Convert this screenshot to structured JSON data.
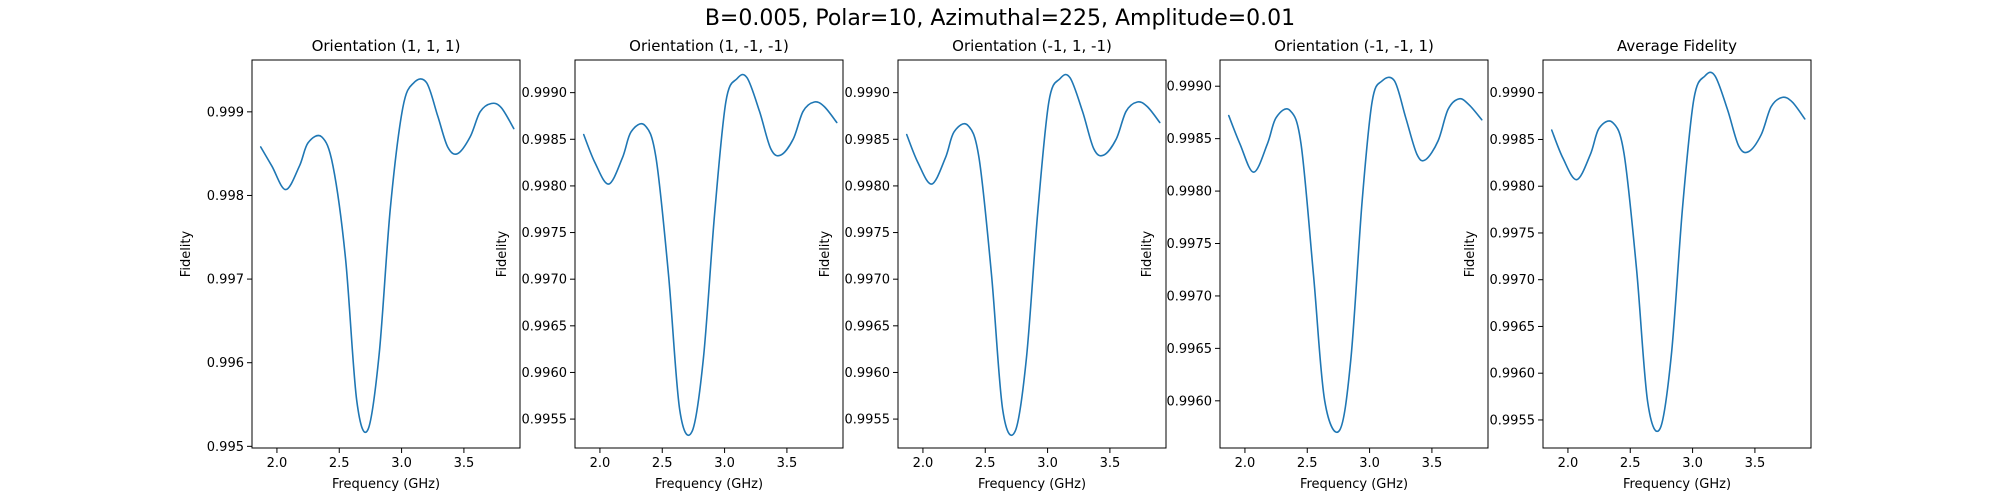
{
  "figure": {
    "title": "B=0.005, Polar=10, Azimuthal=225, Amplitude=0.01"
  },
  "chart_data": [
    {
      "type": "line",
      "title": "Orientation (1, 1, 1)",
      "xlabel": "Frequency (GHz)",
      "ylabel": "Fidelity",
      "xlim": [
        1.8,
        3.95
      ],
      "ylim": [
        0.99498,
        0.99962
      ],
      "xticks": [
        2.0,
        2.5,
        3.0,
        3.5
      ],
      "xtick_labels": [
        "2.0",
        "2.5",
        "3.0",
        "3.5"
      ],
      "yticks": [
        0.995,
        0.996,
        0.997,
        0.998,
        0.999
      ],
      "ytick_labels": [
        "0.995",
        "0.996",
        "0.997",
        "0.998",
        "0.999"
      ],
      "color": "#1f77b4",
      "grid": false,
      "series": [
        {
          "x": [
            1.87,
            1.96,
            2.07,
            2.18,
            2.25,
            2.36,
            2.45,
            2.55,
            2.64,
            2.73,
            2.82,
            2.91,
            3.01,
            3.1,
            3.2,
            3.29,
            3.37,
            3.45,
            3.55,
            3.63,
            3.72,
            3.8,
            3.9
          ],
          "y": [
            0.99858,
            0.99835,
            0.99807,
            0.99835,
            0.99863,
            0.9987,
            0.99835,
            0.99725,
            0.99555,
            0.9952,
            0.9961,
            0.99785,
            0.99905,
            0.99935,
            0.99935,
            0.99895,
            0.99858,
            0.9985,
            0.9987,
            0.999,
            0.9991,
            0.99905,
            0.9988
          ]
        }
      ]
    },
    {
      "type": "line",
      "title": "Orientation (1, -1, -1)",
      "xlabel": "Frequency (GHz)",
      "ylabel": "Fidelity",
      "xlim": [
        1.8,
        3.95
      ],
      "ylim": [
        0.99519,
        0.99935
      ],
      "xticks": [
        2.0,
        2.5,
        3.0,
        3.5
      ],
      "xtick_labels": [
        "2.0",
        "2.5",
        "3.0",
        "3.5"
      ],
      "yticks": [
        0.9955,
        0.996,
        0.9965,
        0.997,
        0.9975,
        0.998,
        0.9985,
        0.999
      ],
      "ytick_labels": [
        "0.9955",
        "0.9960",
        "0.9965",
        "0.9970",
        "0.9975",
        "0.9980",
        "0.9985",
        "0.9990"
      ],
      "color": "#1f77b4",
      "grid": false,
      "series": [
        {
          "x": [
            1.87,
            1.96,
            2.07,
            2.18,
            2.25,
            2.36,
            2.45,
            2.55,
            2.64,
            2.74,
            2.83,
            2.92,
            3.01,
            3.1,
            3.18,
            3.28,
            3.37,
            3.45,
            3.55,
            3.63,
            3.72,
            3.8,
            3.9
          ],
          "y": [
            0.99855,
            0.99825,
            0.99802,
            0.9983,
            0.99858,
            0.99865,
            0.9983,
            0.99705,
            0.9956,
            0.99537,
            0.99615,
            0.9977,
            0.9989,
            0.99915,
            0.99916,
            0.9988,
            0.9984,
            0.99833,
            0.9985,
            0.9988,
            0.9989,
            0.99885,
            0.99868
          ]
        }
      ]
    },
    {
      "type": "line",
      "title": "Orientation (-1, 1, -1)",
      "xlabel": "Frequency (GHz)",
      "ylabel": "Fidelity",
      "xlim": [
        1.8,
        3.95
      ],
      "ylim": [
        0.99519,
        0.99935
      ],
      "xticks": [
        2.0,
        2.5,
        3.0,
        3.5
      ],
      "xtick_labels": [
        "2.0",
        "2.5",
        "3.0",
        "3.5"
      ],
      "yticks": [
        0.9955,
        0.996,
        0.9965,
        0.997,
        0.9975,
        0.998,
        0.9985,
        0.999
      ],
      "ytick_labels": [
        "0.9955",
        "0.9960",
        "0.9965",
        "0.9970",
        "0.9975",
        "0.9980",
        "0.9985",
        "0.9990"
      ],
      "color": "#1f77b4",
      "grid": false,
      "series": [
        {
          "x": [
            1.87,
            1.96,
            2.07,
            2.18,
            2.25,
            2.36,
            2.45,
            2.55,
            2.64,
            2.74,
            2.83,
            2.92,
            3.01,
            3.1,
            3.18,
            3.28,
            3.37,
            3.45,
            3.55,
            3.63,
            3.72,
            3.8,
            3.9
          ],
          "y": [
            0.99855,
            0.99825,
            0.99802,
            0.9983,
            0.99858,
            0.99865,
            0.9983,
            0.99705,
            0.9956,
            0.99537,
            0.99615,
            0.9977,
            0.9989,
            0.99915,
            0.99916,
            0.9988,
            0.9984,
            0.99833,
            0.9985,
            0.9988,
            0.9989,
            0.99885,
            0.99868
          ]
        }
      ]
    },
    {
      "type": "line",
      "title": "Orientation (-1, -1, 1)",
      "xlabel": "Frequency (GHz)",
      "ylabel": "Fidelity",
      "xlim": [
        1.8,
        3.95
      ],
      "ylim": [
        0.99555,
        0.99925
      ],
      "xticks": [
        2.0,
        2.5,
        3.0,
        3.5
      ],
      "xtick_labels": [
        "2.0",
        "2.5",
        "3.0",
        "3.5"
      ],
      "yticks": [
        0.996,
        0.9965,
        0.997,
        0.9975,
        0.998,
        0.9985,
        0.999
      ],
      "ytick_labels": [
        "0.9960",
        "0.9965",
        "0.9970",
        "0.9975",
        "0.9980",
        "0.9985",
        "0.9990"
      ],
      "color": "#1f77b4",
      "grid": false,
      "series": [
        {
          "x": [
            1.87,
            1.96,
            2.07,
            2.18,
            2.25,
            2.36,
            2.45,
            2.55,
            2.64,
            2.76,
            2.85,
            2.94,
            3.02,
            3.1,
            3.2,
            3.29,
            3.38,
            3.45,
            3.55,
            3.63,
            3.72,
            3.8,
            3.9
          ],
          "y": [
            0.99872,
            0.99845,
            0.99818,
            0.99845,
            0.9987,
            0.99877,
            0.99845,
            0.9972,
            0.996,
            0.99572,
            0.9964,
            0.9979,
            0.99885,
            0.99905,
            0.99905,
            0.9987,
            0.99835,
            0.9983,
            0.99848,
            0.99878,
            0.99888,
            0.99882,
            0.99868
          ]
        }
      ]
    },
    {
      "type": "line",
      "title": "Average Fidelity",
      "xlabel": "Frequency (GHz)",
      "ylabel": "Fidelity",
      "xlim": [
        1.8,
        3.95
      ],
      "ylim": [
        0.9952,
        0.99935
      ],
      "xticks": [
        2.0,
        2.5,
        3.0,
        3.5
      ],
      "xtick_labels": [
        "2.0",
        "2.5",
        "3.0",
        "3.5"
      ],
      "yticks": [
        0.9955,
        0.996,
        0.9965,
        0.997,
        0.9975,
        0.998,
        0.9985,
        0.999
      ],
      "ytick_labels": [
        "0.9955",
        "0.9960",
        "0.9965",
        "0.9970",
        "0.9975",
        "0.9980",
        "0.9985",
        "0.9990"
      ],
      "color": "#1f77b4",
      "grid": false,
      "series": [
        {
          "x": [
            1.87,
            1.96,
            2.07,
            2.18,
            2.25,
            2.36,
            2.45,
            2.55,
            2.64,
            2.74,
            2.83,
            2.92,
            3.01,
            3.1,
            3.18,
            3.28,
            3.37,
            3.45,
            3.55,
            3.63,
            3.72,
            3.8,
            3.9
          ],
          "y": [
            0.9986,
            0.9983,
            0.99807,
            0.99834,
            0.99862,
            0.99868,
            0.99835,
            0.99712,
            0.99569,
            0.99541,
            0.9962,
            0.99778,
            0.99893,
            0.99918,
            0.99918,
            0.99882,
            0.99843,
            0.99837,
            0.99855,
            0.99885,
            0.99895,
            0.9989,
            0.99872
          ]
        }
      ]
    }
  ]
}
